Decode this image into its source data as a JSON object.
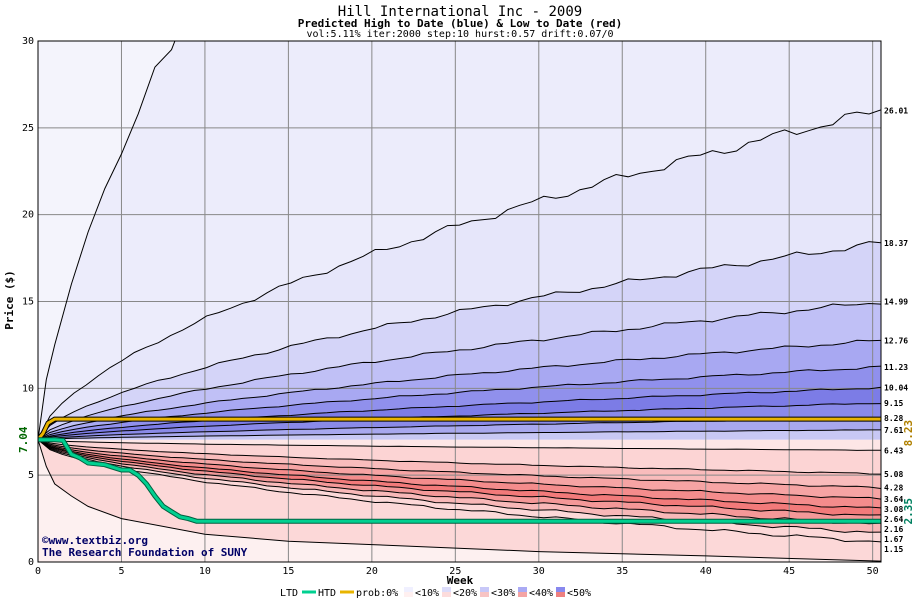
{
  "chart_data": {
    "type": "area",
    "title": "Hill International Inc - 2009",
    "subtitle": "Predicted High to Date (blue) &  Low to Date (red)",
    "params": "vol:5.11% iter:2000 step:10 hurst:0.57 drift:0.07/0",
    "xlabel": "Week",
    "ylabel": "Price ($)",
    "xlim": [
      0,
      50.5
    ],
    "ylim": [
      0,
      30
    ],
    "x_ticks": [
      0,
      5,
      10,
      15,
      20,
      25,
      30,
      35,
      40,
      45,
      50
    ],
    "y_ticks": [
      0,
      5,
      10,
      15,
      20,
      25,
      30
    ],
    "grid": true,
    "start_price": 7.04,
    "start_price_label": "7.04",
    "high_bands": [
      {
        "end": 26.01,
        "label": "26.01"
      },
      {
        "end": 18.37,
        "label": "18.37"
      },
      {
        "end": 14.99,
        "label": "14.99"
      },
      {
        "end": 12.76,
        "label": "12.76"
      },
      {
        "end": 11.23,
        "label": "11.23"
      },
      {
        "end": 10.04,
        "label": "10.04"
      },
      {
        "end": 9.15,
        "label": "9.15"
      },
      {
        "end": 8.28,
        "label": "8.28"
      },
      {
        "end": 7.61,
        "label": "7.61"
      }
    ],
    "low_bands": [
      {
        "end": 6.43,
        "label": "6.43"
      },
      {
        "end": 5.08,
        "label": "5.08"
      },
      {
        "end": 4.28,
        "label": "4.28"
      },
      {
        "end": 3.64,
        "label": "3.64"
      },
      {
        "end": 3.08,
        "label": "3.08"
      },
      {
        "end": 2.64,
        "label": "2.64"
      },
      {
        "end": 2.16,
        "label": "2.16"
      },
      {
        "end": 1.67,
        "label": "1.67"
      },
      {
        "end": 1.15,
        "label": "1.15"
      }
    ],
    "outer_high": {
      "points": [
        [
          0,
          7.04
        ],
        [
          0.5,
          10.5
        ],
        [
          1,
          12.5
        ],
        [
          2,
          16
        ],
        [
          3,
          19
        ],
        [
          4,
          21.5
        ],
        [
          5,
          23.5
        ],
        [
          6,
          25.8
        ],
        [
          7,
          28.5
        ],
        [
          8,
          29.5
        ],
        [
          8.2,
          30
        ]
      ]
    },
    "outer_low": {
      "points": [
        [
          0,
          7.04
        ],
        [
          0.5,
          5.5
        ],
        [
          1,
          4.5
        ],
        [
          2,
          3.8
        ],
        [
          3,
          3.2
        ],
        [
          5,
          2.5
        ],
        [
          10,
          1.6
        ],
        [
          15,
          1.2
        ],
        [
          20,
          1.0
        ],
        [
          30,
          0.6
        ],
        [
          40,
          0.35
        ],
        [
          50.5,
          0.05
        ]
      ]
    },
    "htd_series": {
      "name": "HTD",
      "final": 8.23,
      "final_label": "8.23",
      "color": "#e8b400",
      "points": [
        [
          0,
          7.04
        ],
        [
          0.3,
          7.4
        ],
        [
          0.6,
          8.0
        ],
        [
          1,
          8.23
        ],
        [
          50.5,
          8.23
        ]
      ]
    },
    "ltd_series": {
      "name": "LTD",
      "final": 2.35,
      "final_label": "2.35",
      "color": "#00d090",
      "points": [
        [
          0,
          7.04
        ],
        [
          1,
          7.04
        ],
        [
          1.5,
          7.0
        ],
        [
          2,
          6.2
        ],
        [
          2.5,
          6.0
        ],
        [
          3,
          5.7
        ],
        [
          4,
          5.6
        ],
        [
          5,
          5.3
        ],
        [
          5.5,
          5.3
        ],
        [
          6,
          5.0
        ],
        [
          6.5,
          4.5
        ],
        [
          7,
          3.8
        ],
        [
          7.5,
          3.2
        ],
        [
          8,
          2.9
        ],
        [
          8.5,
          2.6
        ],
        [
          9,
          2.5
        ],
        [
          9.5,
          2.35
        ],
        [
          50.5,
          2.35
        ]
      ]
    },
    "legend": {
      "ltd": "LTD",
      "htd": "HTD",
      "prob_label": "prob:0%",
      "items": [
        "<10%",
        "<20%",
        "<30%",
        "<40%",
        "<50%"
      ],
      "blue_colors": [
        "#f0f0ff",
        "#dcdcfa",
        "#c8c8f8",
        "#aaaaf4",
        "#8888ee"
      ],
      "red_colors": [
        "#fff0f0",
        "#fcdcdc",
        "#f8c4c4",
        "#f4a4a4",
        "#ee8080"
      ]
    },
    "credits": [
      "©www.textbiz.org",
      "The Research Foundation of SUNY"
    ],
    "colors": {
      "plot_bg": "#f4f4fc",
      "high_fill": [
        "#e6e6fa",
        "#d4d4f8",
        "#c0c0f6",
        "#a8a8f2",
        "#9090ec",
        "#7c7ce6",
        "#8a8ae8",
        "#a8a8ee",
        "#c8c8f4"
      ],
      "low_fill": [
        "#fde6e6",
        "#fcd4d4",
        "#f9bcbc",
        "#f6a4a4",
        "#f48c8c",
        "#f27a7a",
        "#f49898",
        "#f8b8b8",
        "#fcd8d8"
      ],
      "low_outer_fill": "#fdf0f0"
    }
  }
}
